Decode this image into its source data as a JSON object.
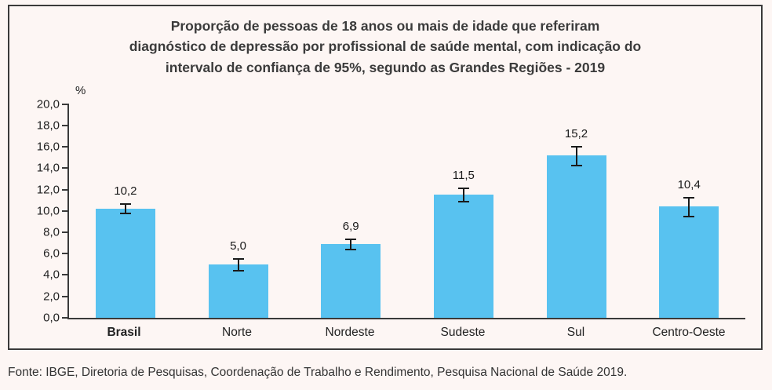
{
  "page": {
    "footer": "Fonte: IBGE, Diretoria de Pesquisas, Coordenação de Trabalho e Rendimento, Pesquisa Nacional de Saúde 2019."
  },
  "chart_data": {
    "type": "bar",
    "title": "Proporção de pessoas de 18 anos ou mais de idade que referiram diagnóstico de depressão por profissional de saúde mental, com indicação do intervalo de confiança de 95%, segundo as Grandes Regiões - 2019",
    "title_lines": [
      "Proporção de pessoas de 18 anos ou mais de idade que referiram",
      "diagnóstico de depressão por profissional de saúde mental, com indicação do",
      "intervalo de confiança de 95%, segundo as Grandes Regiões - 2019"
    ],
    "ylabel": "%",
    "ylim": [
      0,
      20
    ],
    "y_tick_step": 2,
    "y_ticks": [
      "0,0",
      "2,0",
      "4,0",
      "6,0",
      "8,0",
      "10,0",
      "12,0",
      "14,0",
      "16,0",
      "18,0",
      "20,0"
    ],
    "grid": false,
    "legend": false,
    "categories": [
      "Brasil",
      "Norte",
      "Nordeste",
      "Sudeste",
      "Sul",
      "Centro-Oeste"
    ],
    "bold_category_index": 0,
    "values": [
      10.2,
      5.0,
      6.9,
      11.5,
      15.2,
      10.4
    ],
    "value_labels": [
      "10,2",
      "5,0",
      "6,9",
      "11,5",
      "15,2",
      "10,4"
    ],
    "ci_low": [
      9.7,
      4.3,
      6.3,
      10.8,
      14.2,
      9.4
    ],
    "ci_high": [
      10.7,
      5.6,
      7.4,
      12.2,
      16.1,
      11.3
    ],
    "bar_color": "#58c2f0"
  }
}
